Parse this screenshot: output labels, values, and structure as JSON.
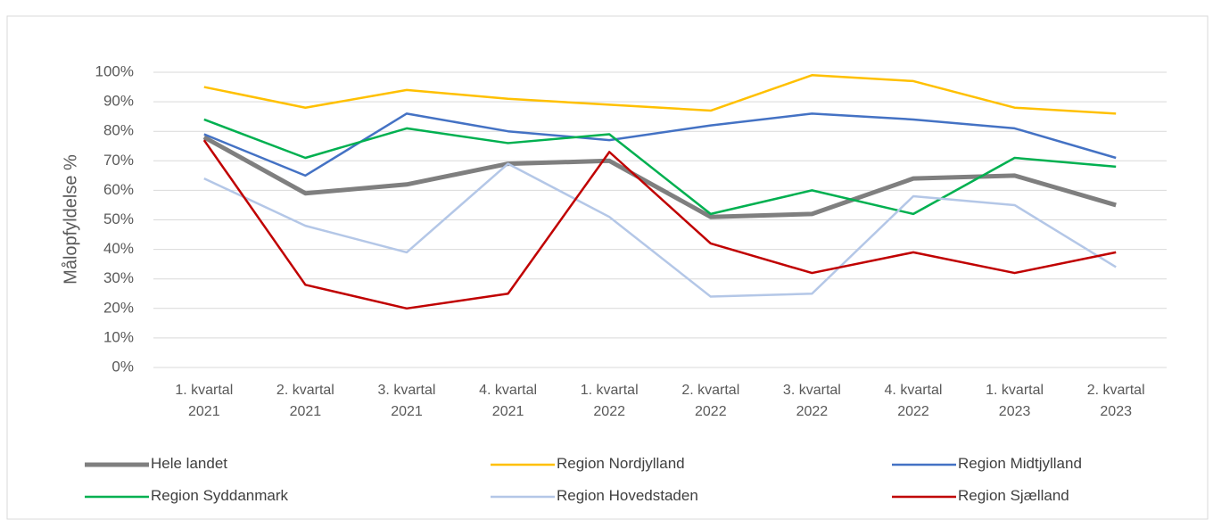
{
  "chart_data": {
    "type": "line",
    "y_label": "Målopfyldelse %",
    "categories": [
      "1. kvartal 2021",
      "2. kvartal 2021",
      "3. kvartal 2021",
      "4. kvartal 2021",
      "1. kvartal 2022",
      "2. kvartal 2022",
      "3. kvartal 2022",
      "4. kvartal 2022",
      "1. kvartal 2023",
      "2. kvartal 2023"
    ],
    "series": [
      {
        "name": "Hele landet",
        "color": "#7f7f7f",
        "values": [
          78,
          59,
          62,
          69,
          70,
          51,
          52,
          64,
          65,
          55
        ]
      },
      {
        "name": "Region Nordjylland",
        "color": "#ffc000",
        "values": [
          95,
          88,
          94,
          91,
          89,
          87,
          99,
          97,
          88,
          86
        ]
      },
      {
        "name": "Region Midtjylland",
        "color": "#4472c4",
        "values": [
          79,
          65,
          86,
          80,
          77,
          82,
          86,
          84,
          81,
          71
        ]
      },
      {
        "name": "Region Syddanmark",
        "color": "#00b050",
        "values": [
          84,
          71,
          81,
          76,
          79,
          52,
          60,
          52,
          71,
          68
        ]
      },
      {
        "name": "Region Hovedstaden",
        "color": "#b4c7e7",
        "values": [
          64,
          48,
          39,
          69,
          51,
          24,
          25,
          58,
          55,
          34
        ]
      },
      {
        "name": "Region Sjælland",
        "color": "#c00000",
        "values": [
          77,
          28,
          20,
          25,
          73,
          42,
          32,
          39,
          32,
          39
        ]
      }
    ],
    "ylim": [
      0,
      100
    ],
    "yticks": [
      {
        "value": 0,
        "label": "0%"
      },
      {
        "value": 10,
        "label": "10%"
      },
      {
        "value": 20,
        "label": "20%"
      },
      {
        "value": 30,
        "label": "30%"
      },
      {
        "value": 40,
        "label": "40%"
      },
      {
        "value": 50,
        "label": "50%"
      },
      {
        "value": 60,
        "label": "60%"
      },
      {
        "value": 70,
        "label": "70%"
      },
      {
        "value": 80,
        "label": "80%"
      },
      {
        "value": 90,
        "label": "90%"
      },
      {
        "value": 100,
        "label": "100%"
      }
    ],
    "grid": true
  }
}
